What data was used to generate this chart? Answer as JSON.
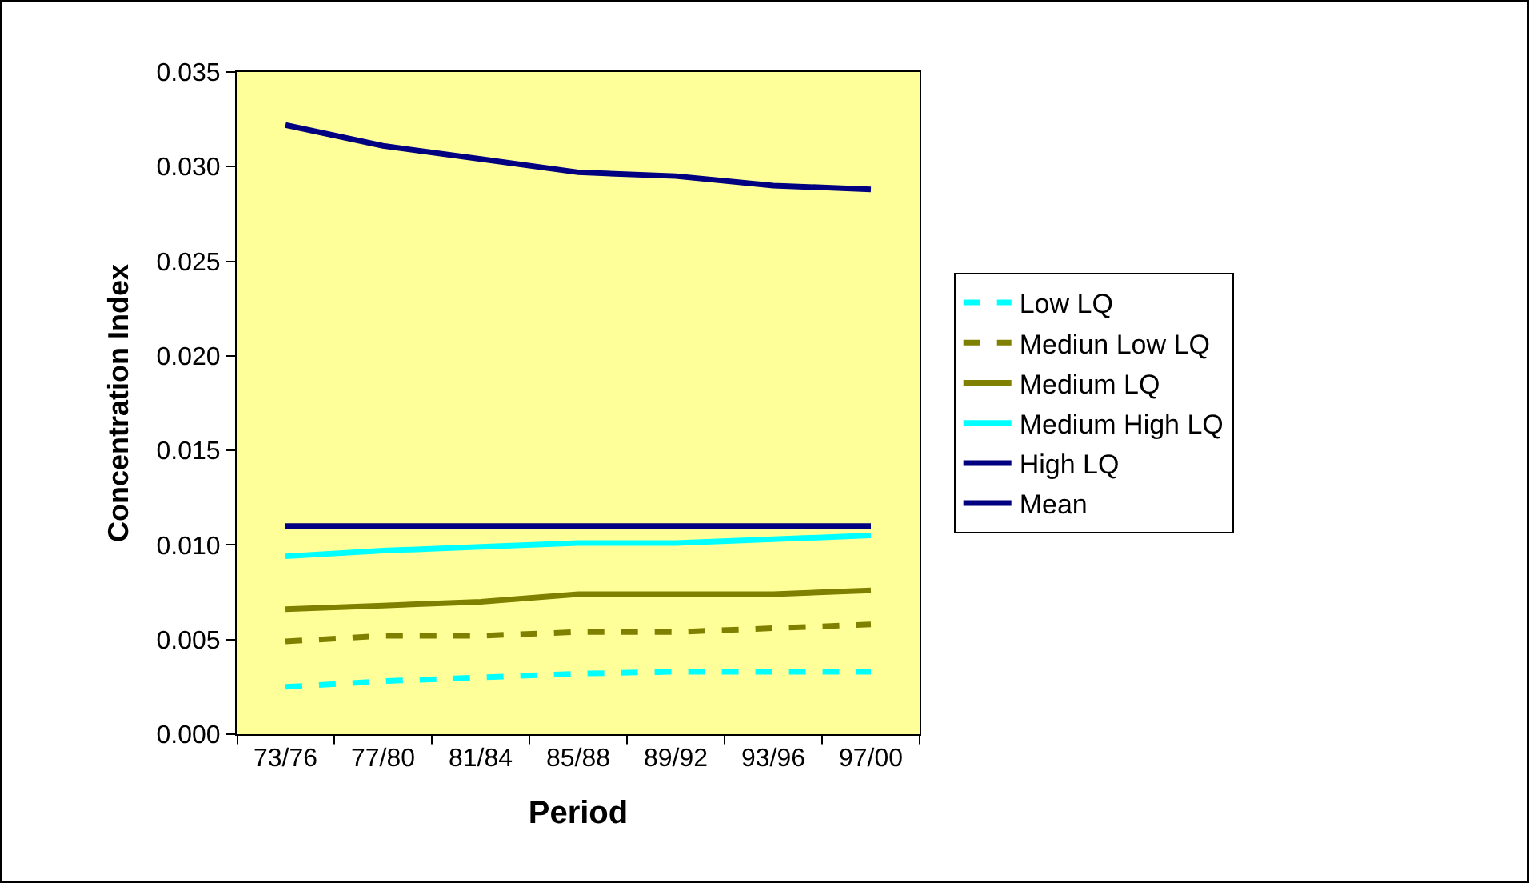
{
  "chart_data": {
    "type": "line",
    "xlabel": "Period",
    "ylabel": "Concentration Index",
    "categories": [
      "73/76",
      "77/80",
      "81/84",
      "85/88",
      "89/92",
      "93/96",
      "97/00"
    ],
    "series": [
      {
        "name": "Low LQ",
        "color": "#00ffff",
        "line_style": "dashed",
        "values": [
          0.0025,
          0.0028,
          0.003,
          0.0032,
          0.0033,
          0.0033,
          0.0033
        ]
      },
      {
        "name": "Mediun Low LQ",
        "color": "#808000",
        "line_style": "dashed",
        "values": [
          0.0049,
          0.0052,
          0.0052,
          0.0054,
          0.0054,
          0.0056,
          0.0058
        ]
      },
      {
        "name": "Medium LQ",
        "color": "#808000",
        "line_style": "solid",
        "values": [
          0.0066,
          0.0068,
          0.007,
          0.0074,
          0.0074,
          0.0074,
          0.0076
        ]
      },
      {
        "name": "Medium High LQ",
        "color": "#00ffff",
        "line_style": "solid",
        "values": [
          0.0094,
          0.0097,
          0.0099,
          0.0101,
          0.0101,
          0.0103,
          0.0105
        ]
      },
      {
        "name": "High LQ",
        "color": "#000080",
        "line_style": "solid",
        "values": [
          0.0322,
          0.0311,
          0.0304,
          0.0297,
          0.0295,
          0.029,
          0.0288
        ]
      },
      {
        "name": "Mean",
        "color": "#000080",
        "line_style": "solid",
        "values": [
          0.011,
          0.011,
          0.011,
          0.011,
          0.011,
          0.011,
          0.011
        ]
      }
    ],
    "ylim": [
      0,
      0.035
    ],
    "yticks": [
      {
        "value": 0,
        "label": "0.000"
      },
      {
        "value": 0.005,
        "label": "0.005"
      },
      {
        "value": 0.01,
        "label": "0.010"
      },
      {
        "value": 0.015,
        "label": "0.015"
      },
      {
        "value": 0.02,
        "label": "0.020"
      },
      {
        "value": 0.025,
        "label": "0.025"
      },
      {
        "value": 0.03,
        "label": "0.030"
      },
      {
        "value": 0.035,
        "label": "0.035"
      }
    ],
    "grid": false,
    "legend": "right",
    "marker": "none"
  }
}
